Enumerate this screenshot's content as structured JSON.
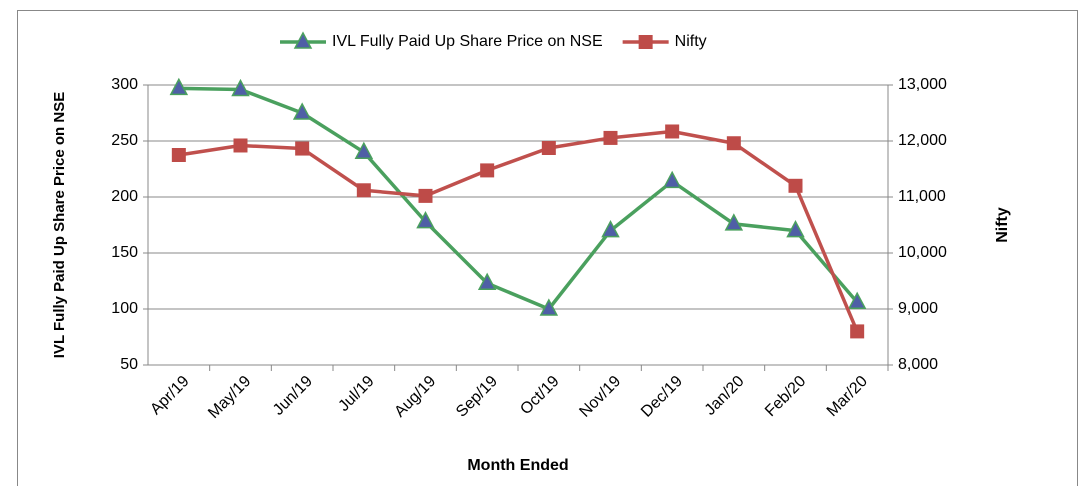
{
  "chart_data": {
    "type": "line",
    "categories": [
      "Apr/19",
      "May/19",
      "Jun/19",
      "Jul/19",
      "Aug/19",
      "Sep/19",
      "Oct/19",
      "Nov/19",
      "Dec/19",
      "Jan/20",
      "Feb/20",
      "Mar/20"
    ],
    "series": [
      {
        "name": "IVL Fully Paid Up Share Price on NSE",
        "color": "#4aa05e",
        "marker": "triangle",
        "marker_color": "#4f5fa6",
        "values": [
          297,
          296,
          275,
          240,
          178,
          123,
          100,
          170,
          214,
          176,
          170,
          106
        ]
      },
      {
        "name": "Nifty",
        "color": "#c0504d",
        "marker": "square",
        "marker_color": "#be4b48",
        "axis": "y2",
        "values": [
          11750,
          11920,
          11865,
          11120,
          11020,
          11475,
          11875,
          12055,
          12170,
          11960,
          11200,
          8600
        ]
      }
    ],
    "x_label": "Month Ended",
    "y_label": "IVL Fully Paid Up Share Price on NSE",
    "y2_label": "Nifty",
    "ylim": [
      50,
      300
    ],
    "yticks": [
      50,
      100,
      150,
      200,
      250,
      300
    ],
    "y2lim": [
      8000,
      13000
    ],
    "y2ticks": [
      {
        "value": 8000,
        "label": "8,000"
      },
      {
        "value": 9000,
        "label": "9,000"
      },
      {
        "value": 10000,
        "label": "10,000"
      },
      {
        "value": 11000,
        "label": "11,000"
      },
      {
        "value": 12000,
        "label": "12,000"
      },
      {
        "value": 13000,
        "label": "13,000"
      }
    ],
    "grid": true,
    "legend": "top"
  }
}
